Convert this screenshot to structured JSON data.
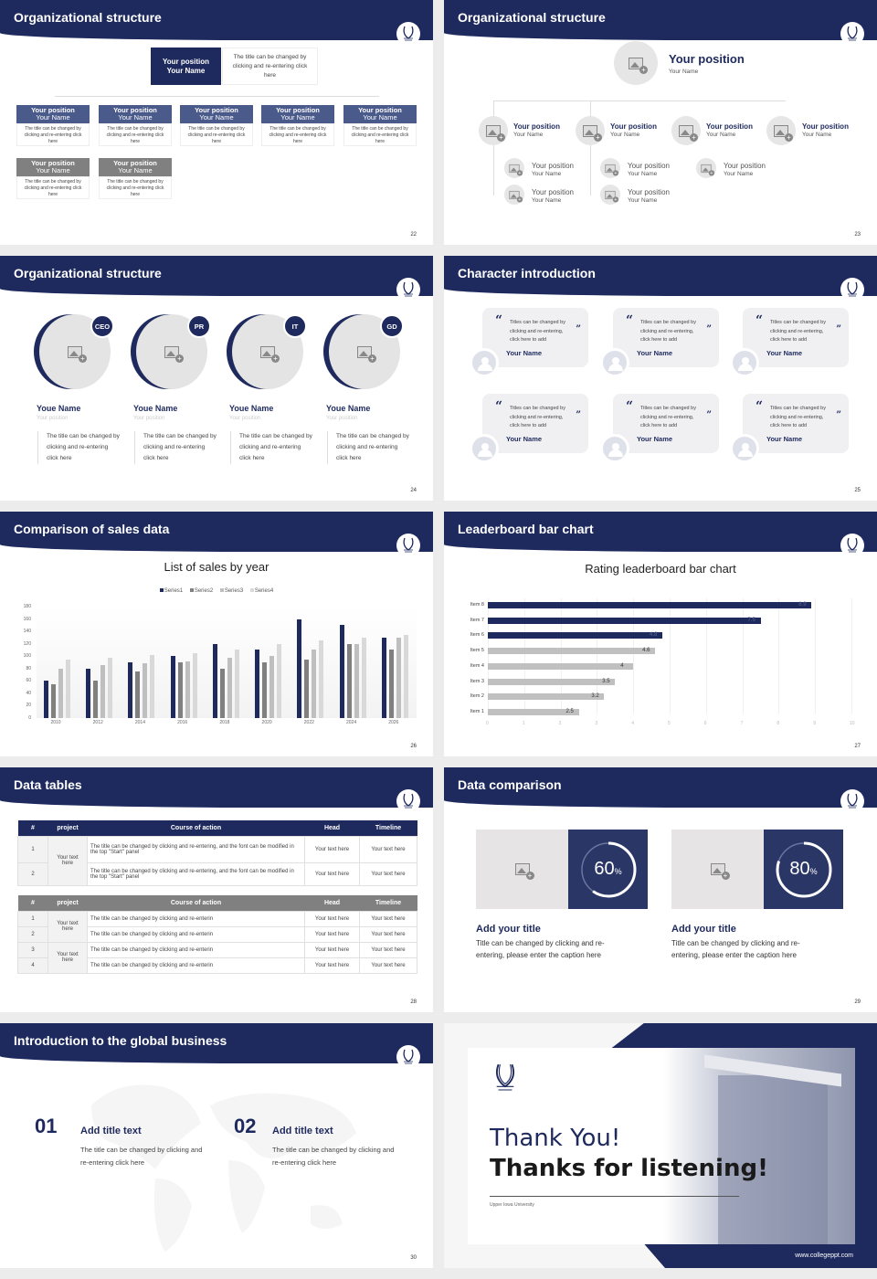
{
  "slides": [
    {
      "page": "22",
      "title": "Organizational structure",
      "top": {
        "position": "Your position",
        "name": "Your Name",
        "desc": "The title can be changed by clicking and re-entering click here"
      },
      "row1": [
        {
          "position": "Your position",
          "name": "Your Name",
          "desc": "The title can be changed by clicking and re-entering click here"
        },
        {
          "position": "Your position",
          "name": "Your Name",
          "desc": "The title can be changed by clicking and re-entering click here"
        },
        {
          "position": "Your position",
          "name": "Your Name",
          "desc": "The title can be changed by clicking and re-entering click here"
        },
        {
          "position": "Your position",
          "name": "Your Name",
          "desc": "The title can be changed by clicking and re-entering click here"
        },
        {
          "position": "Your position",
          "name": "Your Name",
          "desc": "The title can be changed by clicking and re-entering click here"
        }
      ],
      "row2": [
        {
          "position": "Your position",
          "name": "Your Name",
          "desc": "The title can be changed by clicking and re-entering click here"
        },
        {
          "position": "Your position",
          "name": "Your Name",
          "desc": "The title can be changed by clicking and re-entering click here"
        }
      ]
    },
    {
      "page": "23",
      "title": "Organizational structure",
      "top": {
        "position": "Your position",
        "name": "Your Name"
      },
      "level1": [
        {
          "position": "Your position",
          "name": "Your Name"
        },
        {
          "position": "Your position",
          "name": "Your Name"
        },
        {
          "position": "Your position",
          "name": "Your Name"
        },
        {
          "position": "Your position",
          "name": "Your Name"
        }
      ],
      "level2": [
        {
          "position": "Your position",
          "name": "Your Name"
        },
        {
          "position": "Your position",
          "name": "Your Name"
        },
        {
          "position": "Your position",
          "name": "Your Name"
        },
        {
          "position": "Your position",
          "name": "Your Name"
        },
        {
          "position": "Your position",
          "name": "Your Name"
        }
      ]
    },
    {
      "page": "24",
      "title": "Organizational structure",
      "members": [
        {
          "badge": "CEO",
          "name": "Youe Name",
          "position": "Your position",
          "desc": "The title can be changed by clicking and re-entering click here"
        },
        {
          "badge": "PR",
          "name": "Youe Name",
          "position": "Your position",
          "desc": "The title can be changed by clicking and re-entering click here"
        },
        {
          "badge": "IT",
          "name": "Youe Name",
          "position": "Your position",
          "desc": "The title can be changed by clicking and re-entering click here"
        },
        {
          "badge": "GD",
          "name": "Youe Name",
          "position": "Your position",
          "desc": "The title can be changed by clicking and re-entering click here"
        }
      ]
    },
    {
      "page": "25",
      "title": "Character introduction",
      "cards": [
        {
          "quote": "Titles can be changed by clicking and re-entering, click here to add",
          "name": "Your Name"
        },
        {
          "quote": "Titles can be changed by clicking and re-entering, click here to add",
          "name": "Your Name"
        },
        {
          "quote": "Titles can be changed by clicking and re-entering, click here to add",
          "name": "Your Name"
        },
        {
          "quote": "Titles can be changed by clicking and re-entering, click here to add",
          "name": "Your Name"
        },
        {
          "quote": "Titles can be changed by clicking and re-entering, click here to add",
          "name": "Your Name"
        },
        {
          "quote": "Titles can be changed by clicking and re-entering, click here to add",
          "name": "Your Name"
        }
      ],
      "quote_open": "“",
      "quote_close": "”"
    },
    {
      "page": "26",
      "title": "Comparison of sales data",
      "chart_title": "List of sales by year"
    },
    {
      "page": "27",
      "title": "Leaderboard bar chart",
      "chart_title": "Rating leaderboard bar chart"
    },
    {
      "page": "28",
      "title": "Data tables",
      "table1": {
        "headers": [
          "#",
          "project",
          "Course of action",
          "Head",
          "Timeline"
        ],
        "project": "Your text here",
        "rows": [
          {
            "n": "1",
            "action": "The title can be changed by clicking and re-entering, and the font can be modified in the top \"Start\" panel",
            "head": "Your text here",
            "timeline": "Your text here"
          },
          {
            "n": "2",
            "action": "The title can be changed by clicking and re-entering, and the font can be modified in the top \"Start\" panel",
            "head": "Your text here",
            "timeline": "Your text here"
          }
        ]
      },
      "table2": {
        "headers": [
          "#",
          "project",
          "Course of action",
          "Head",
          "Timeline"
        ],
        "project_a": "Your text here",
        "project_b": "Your text here",
        "rows": [
          {
            "n": "1",
            "action": "The title can be changed by clicking and re-enterin",
            "head": "Your text here",
            "timeline": "Your text here"
          },
          {
            "n": "2",
            "action": "The title can be changed by clicking and re-enterin",
            "head": "Your text here",
            "timeline": "Your text here"
          },
          {
            "n": "3",
            "action": "The title can be changed by clicking and re-enterin",
            "head": "Your text here",
            "timeline": "Your text here"
          },
          {
            "n": "4",
            "action": "The title can be changed by clicking and re-enterin",
            "head": "Your text here",
            "timeline": "Your text here"
          }
        ]
      }
    },
    {
      "page": "29",
      "title": "Data comparison",
      "items": [
        {
          "percent": "60",
          "unit": "%",
          "heading": "Add your title",
          "desc": "Title can be changed by clicking and re-entering, please enter the caption here"
        },
        {
          "percent": "80",
          "unit": "%",
          "heading": "Add your title",
          "desc": "Title can be changed by clicking and re-entering, please enter the caption here"
        }
      ]
    },
    {
      "page": "30",
      "title": "Introduction to the global business",
      "items": [
        {
          "num": "01",
          "heading": "Add title text",
          "desc": "The title can be changed by clicking and re-entering click here"
        },
        {
          "num": "02",
          "heading": "Add title text",
          "desc": "The title can be changed by clicking and re-entering click here"
        }
      ]
    },
    {
      "line1": "Thank You!",
      "line2": "Thanks for listening!",
      "university": "Upper Iowa University",
      "url": "www.collegeppt.com"
    }
  ],
  "colors": {
    "navy": "#1e2a5e",
    "gray": "#808080",
    "light_gray": "#c0c0c0",
    "lighter_gray": "#d9d9d9"
  },
  "chart_data": [
    {
      "type": "bar",
      "title": "List of sales by year",
      "categories": [
        "2010",
        "2012",
        "2014",
        "2016",
        "2018",
        "2020",
        "2022",
        "2024",
        "2026"
      ],
      "series": [
        {
          "name": "Series1",
          "color": "#1e2a5e",
          "values": [
            60,
            80,
            90,
            100,
            120,
            110,
            160,
            150,
            130
          ]
        },
        {
          "name": "Series2",
          "color": "#808080",
          "values": [
            55,
            60,
            75,
            90,
            80,
            90,
            95,
            120,
            110
          ]
        },
        {
          "name": "Series3",
          "color": "#bfbfbf",
          "values": [
            80,
            85,
            88,
            92,
            98,
            100,
            110,
            120,
            130
          ]
        },
        {
          "name": "Series4",
          "color": "#d9d9d9",
          "values": [
            95,
            98,
            102,
            105,
            110,
            120,
            125,
            130,
            135
          ]
        }
      ],
      "yticks": [
        "0",
        "20",
        "40",
        "60",
        "80",
        "100",
        "120",
        "140",
        "160",
        "180"
      ],
      "ylim": [
        0,
        180
      ],
      "xlabel": "",
      "ylabel": "",
      "legend_position": "top"
    },
    {
      "type": "bar",
      "orientation": "horizontal",
      "title": "Rating leaderboard bar chart",
      "categories": [
        "Item 8",
        "Item 7",
        "Item 6",
        "Item 5",
        "Item 4",
        "Item 3",
        "Item 2",
        "Item 1"
      ],
      "values": [
        8.9,
        7.5,
        4.8,
        4.6,
        4,
        3.5,
        3.2,
        2.5
      ],
      "labels": [
        "8.9",
        "7.5",
        "4.8",
        "4.6",
        "4",
        "3.5",
        "3.2",
        "2.5"
      ],
      "highlight": [
        "Item 8",
        "Item 7",
        "Item 6"
      ],
      "xticks": [
        "0",
        "1",
        "2",
        "3",
        "4",
        "5",
        "6",
        "7",
        "8",
        "9",
        "10"
      ],
      "xlim": [
        0,
        10
      ]
    }
  ]
}
